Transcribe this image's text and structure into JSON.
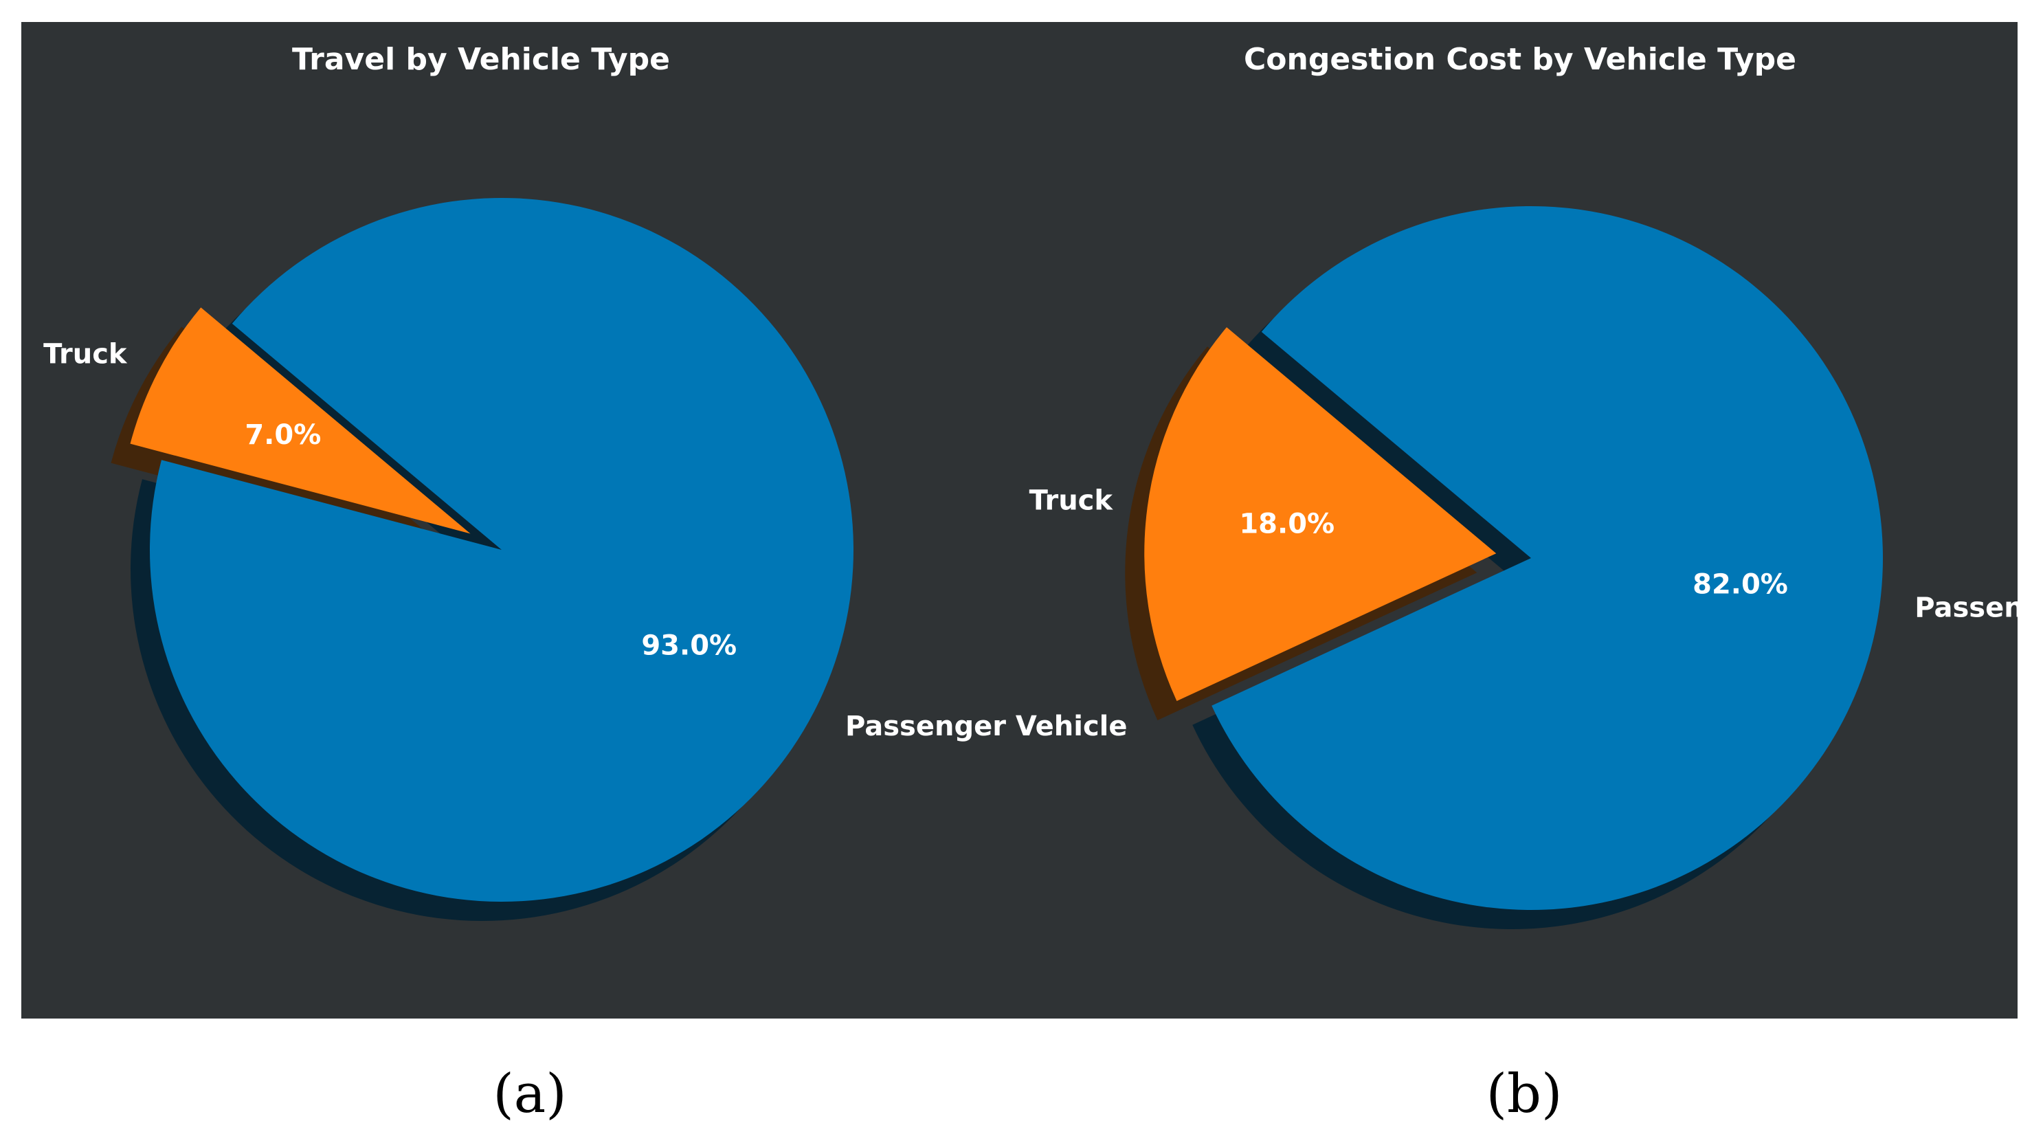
{
  "background_color": "#2f3335",
  "chart_data": [
    {
      "type": "pie",
      "title": "Travel by Vehicle Type",
      "panel_label": "(a)",
      "start_angle_deg": 140,
      "slices": [
        {
          "label": "Truck",
          "value": 7.0,
          "display": "7.0%",
          "color": "#ff7f0e",
          "exploded": true
        },
        {
          "label": "Passenger Vehicle",
          "value": 93.0,
          "display": "93.0%",
          "color": "#0077b6",
          "exploded": false
        }
      ]
    },
    {
      "type": "pie",
      "title": "Congestion Cost by Vehicle Type",
      "panel_label": "(b)",
      "start_angle_deg": 140,
      "slices": [
        {
          "label": "Truck",
          "value": 18.0,
          "display": "18.0%",
          "color": "#ff7f0e",
          "exploded": true
        },
        {
          "label": "Passenger Vehicle",
          "value": 82.0,
          "display": "82.0%",
          "color": "#0077b6",
          "exploded": false
        }
      ]
    }
  ]
}
